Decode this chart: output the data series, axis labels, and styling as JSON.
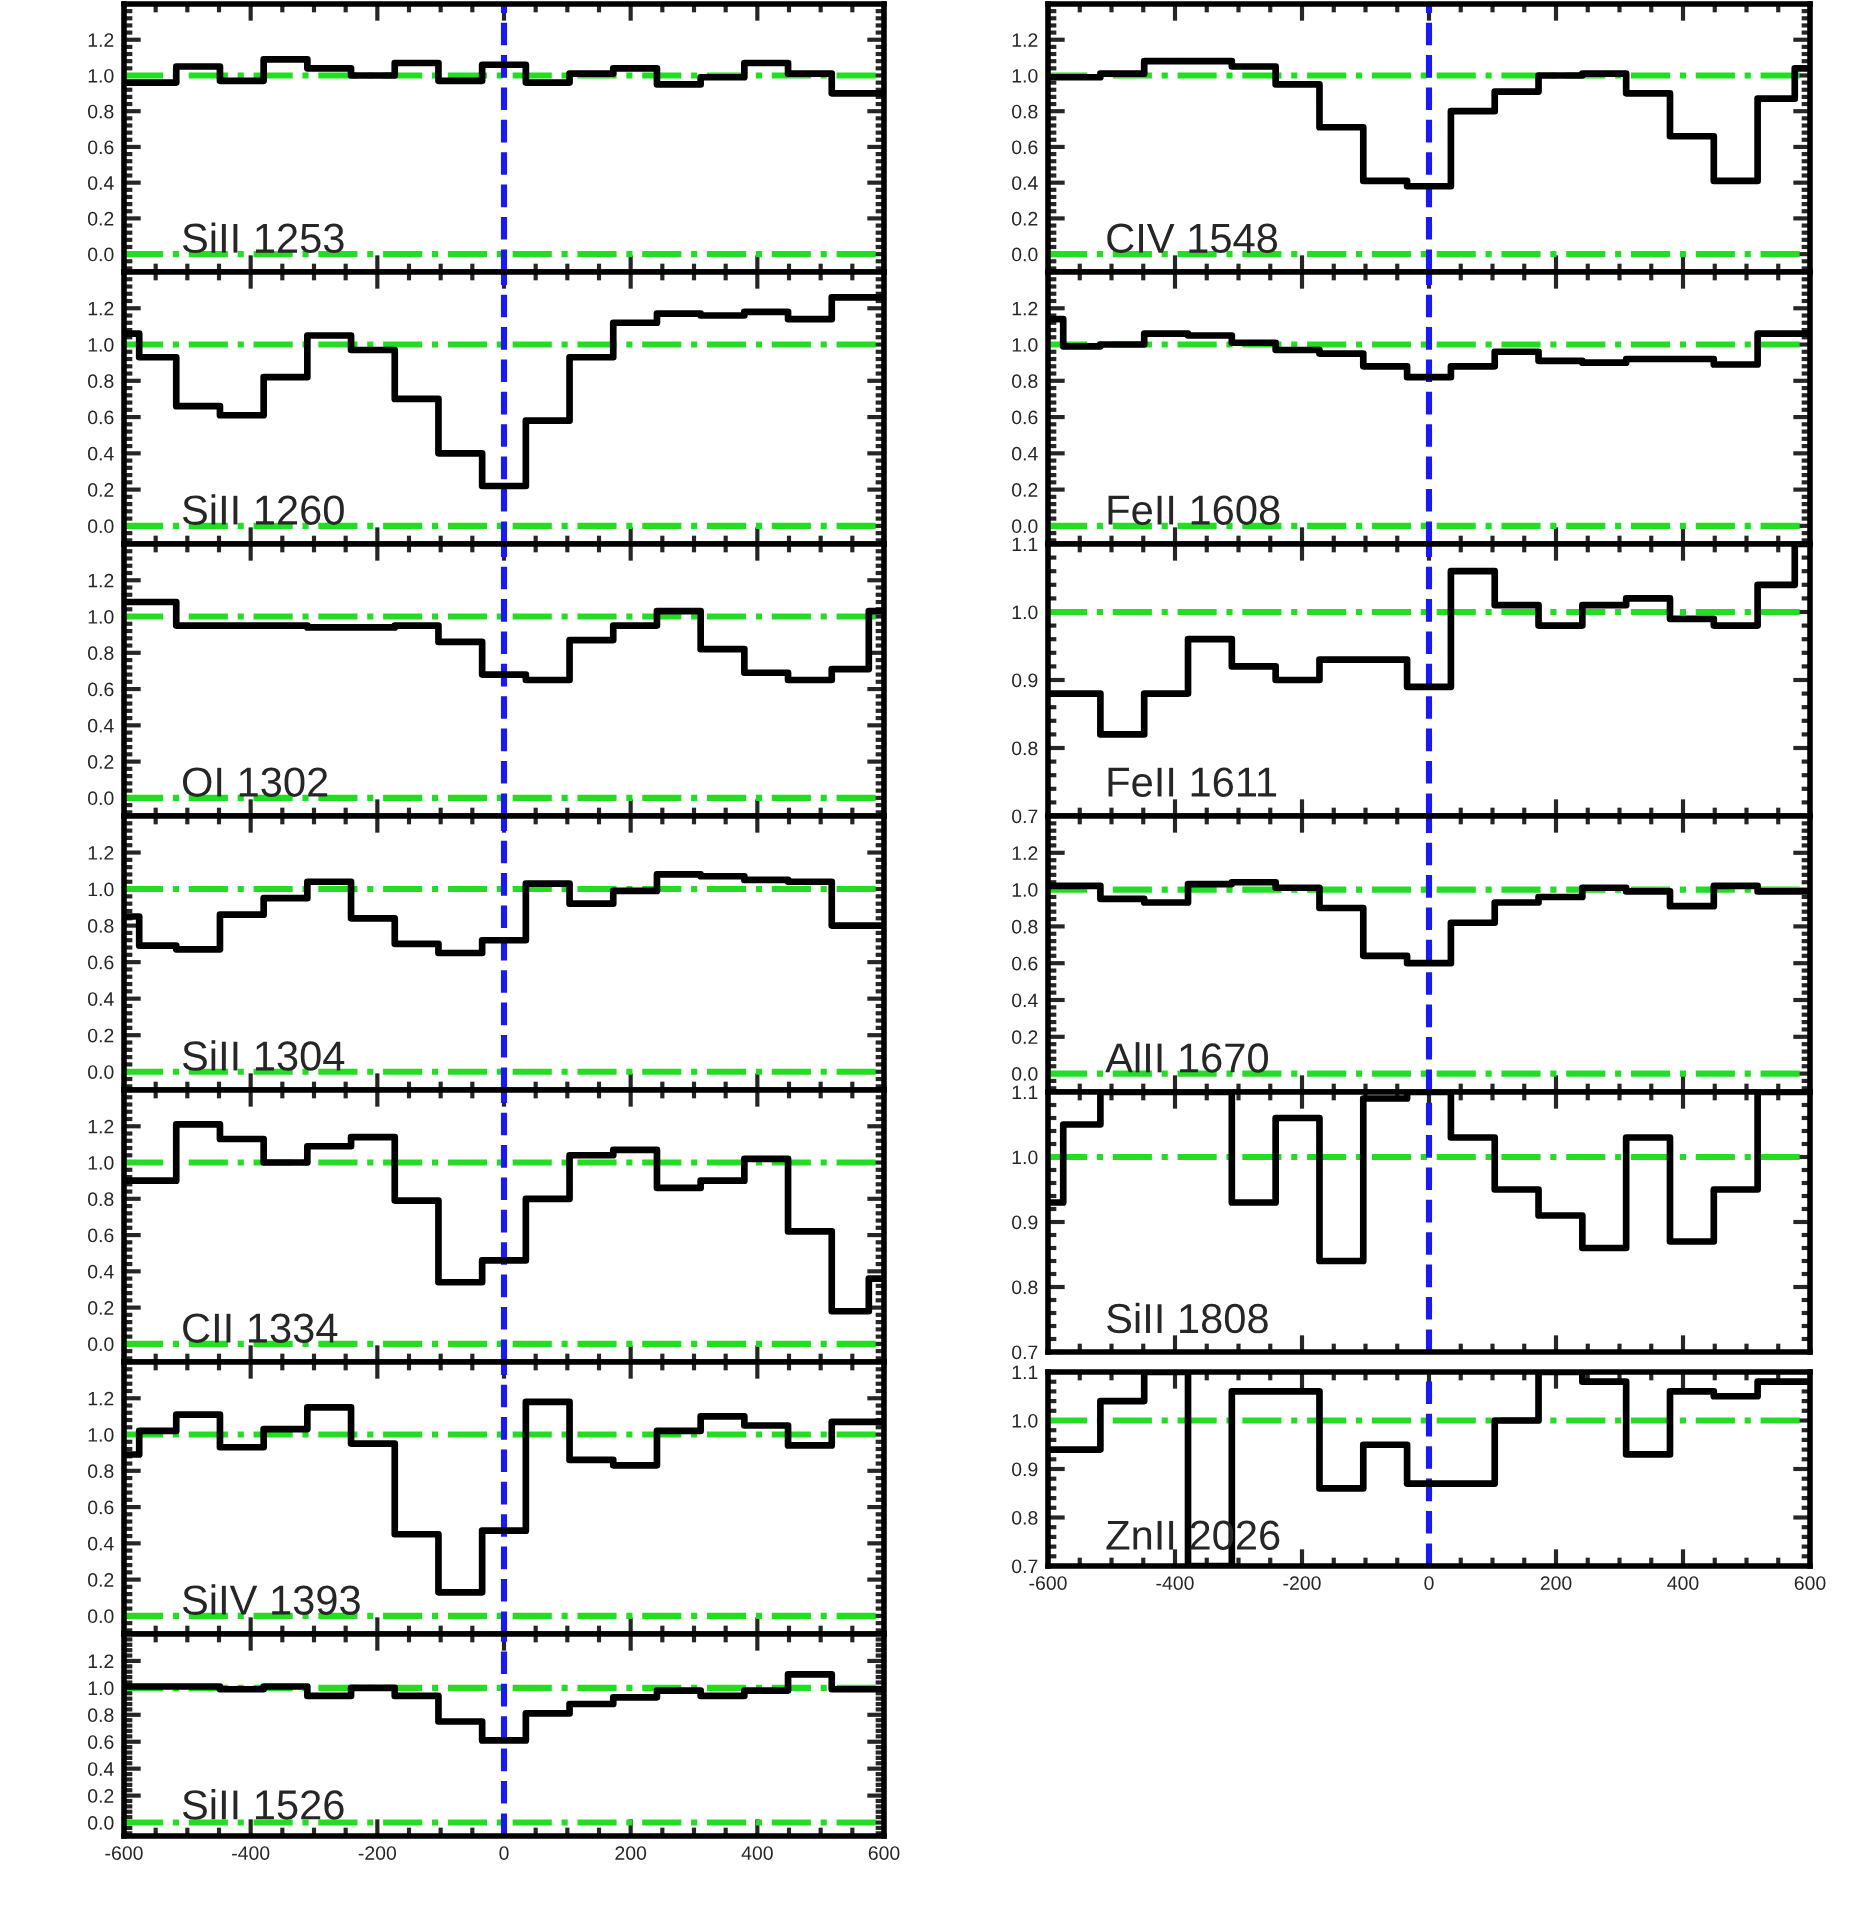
{
  "chart_data": [
    {
      "type": "step",
      "x": [
        -600,
        -552,
        -483,
        -414,
        -345,
        -276,
        -207,
        -138,
        -69,
        0,
        69,
        138,
        207,
        276,
        345,
        414,
        483,
        552,
        600
      ],
      "series": [
        {
          "color": "#000000",
          "values": [
            0.96,
            0.96,
            1.05,
            0.97,
            1.09,
            1.04,
            1.0,
            1.07,
            0.97,
            1.06,
            0.96,
            1.01,
            1.04,
            0.95,
            0.99,
            1.07,
            1.01,
            0.9,
            0.9
          ]
        }
      ],
      "xlim": [
        -600,
        600
      ],
      "ylim": [
        -0.1,
        1.4
      ],
      "xticks": [
        -600,
        -400,
        -200,
        0,
        200,
        400,
        600
      ],
      "yticks": [
        {
          "value": 0,
          "label": "0.0"
        },
        {
          "value": 0.2,
          "label": "0.2"
        },
        {
          "value": 0.4,
          "label": "0.4"
        },
        {
          "value": 0.6,
          "label": "0.6"
        },
        {
          "value": 0.8,
          "label": "0.8"
        },
        {
          "value": 1.0,
          "label": "1.0"
        },
        {
          "value": 1.2,
          "label": "1.2"
        }
      ],
      "tick_labels": "y",
      "annotations": [
        "SiII 1253"
      ],
      "ref_lines": [
        {
          "axis": "y",
          "value": 0,
          "color": "#22dd22",
          "line_style": "dashdot"
        },
        {
          "axis": "y",
          "value": 1,
          "color": "#22dd22",
          "line_style": "dashdot"
        },
        {
          "axis": "x",
          "value": 0,
          "color": "#1a1aee",
          "line_style": "dashed"
        }
      ]
    },
    {
      "type": "step",
      "x": [
        -600,
        -552,
        -483,
        -414,
        -345,
        -276,
        -207,
        -138,
        -69,
        0,
        69,
        138,
        207,
        276,
        345,
        414,
        483,
        552,
        600
      ],
      "series": [
        {
          "color": "#000000",
          "values": [
            1.06,
            0.93,
            0.66,
            0.61,
            0.82,
            1.05,
            0.97,
            0.7,
            0.4,
            0.22,
            0.58,
            0.93,
            1.12,
            1.17,
            1.16,
            1.18,
            1.14,
            1.26,
            1.26
          ]
        }
      ],
      "xlim": [
        -600,
        600
      ],
      "ylim": [
        -0.1,
        1.4
      ],
      "xticks": [
        -600,
        -400,
        -200,
        0,
        200,
        400,
        600
      ],
      "yticks": [
        {
          "value": 0,
          "label": "0.0"
        },
        {
          "value": 0.2,
          "label": "0.2"
        },
        {
          "value": 0.4,
          "label": "0.4"
        },
        {
          "value": 0.6,
          "label": "0.6"
        },
        {
          "value": 0.8,
          "label": "0.8"
        },
        {
          "value": 1.0,
          "label": "1.0"
        },
        {
          "value": 1.2,
          "label": "1.2"
        }
      ],
      "tick_labels": "y",
      "annotations": [
        "SiII 1260"
      ],
      "ref_lines": [
        {
          "axis": "y",
          "value": 0,
          "color": "#22dd22",
          "line_style": "dashdot"
        },
        {
          "axis": "y",
          "value": 1,
          "color": "#22dd22",
          "line_style": "dashdot"
        },
        {
          "axis": "x",
          "value": 0,
          "color": "#1a1aee",
          "line_style": "dashed"
        }
      ]
    },
    {
      "type": "step",
      "x": [
        -600,
        -552,
        -483,
        -414,
        -345,
        -276,
        -207,
        -138,
        -69,
        0,
        69,
        138,
        207,
        276,
        345,
        414,
        483,
        552,
        600
      ],
      "series": [
        {
          "color": "#000000",
          "values": [
            1.08,
            1.08,
            0.95,
            0.95,
            0.95,
            0.94,
            0.94,
            0.95,
            0.86,
            0.68,
            0.65,
            0.87,
            0.95,
            1.03,
            0.82,
            0.69,
            0.65,
            0.71,
            1.03
          ]
        }
      ],
      "xlim": [
        -600,
        600
      ],
      "ylim": [
        -0.1,
        1.4
      ],
      "xticks": [
        -600,
        -400,
        -200,
        0,
        200,
        400,
        600
      ],
      "yticks": [
        {
          "value": 0,
          "label": "0.0"
        },
        {
          "value": 0.2,
          "label": "0.2"
        },
        {
          "value": 0.4,
          "label": "0.4"
        },
        {
          "value": 0.6,
          "label": "0.6"
        },
        {
          "value": 0.8,
          "label": "0.8"
        },
        {
          "value": 1.0,
          "label": "1.0"
        },
        {
          "value": 1.2,
          "label": "1.2"
        }
      ],
      "tick_labels": "y",
      "annotations": [
        "OI 1302"
      ],
      "ref_lines": [
        {
          "axis": "y",
          "value": 0,
          "color": "#22dd22",
          "line_style": "dashdot"
        },
        {
          "axis": "y",
          "value": 1,
          "color": "#22dd22",
          "line_style": "dashdot"
        },
        {
          "axis": "x",
          "value": 0,
          "color": "#1a1aee",
          "line_style": "dashed"
        }
      ]
    },
    {
      "type": "step",
      "x": [
        -600,
        -552,
        -483,
        -414,
        -345,
        -276,
        -207,
        -138,
        -69,
        0,
        69,
        138,
        207,
        276,
        345,
        414,
        483,
        552,
        600
      ],
      "series": [
        {
          "color": "#000000",
          "values": [
            0.85,
            0.69,
            0.67,
            0.86,
            0.95,
            1.04,
            0.84,
            0.7,
            0.65,
            0.72,
            1.03,
            0.92,
            0.99,
            1.08,
            1.07,
            1.05,
            1.04,
            0.8,
            0.8
          ]
        }
      ],
      "xlim": [
        -600,
        600
      ],
      "ylim": [
        -0.1,
        1.4
      ],
      "xticks": [
        -600,
        -400,
        -200,
        0,
        200,
        400,
        600
      ],
      "yticks": [
        {
          "value": 0,
          "label": "0.0"
        },
        {
          "value": 0.2,
          "label": "0.2"
        },
        {
          "value": 0.4,
          "label": "0.4"
        },
        {
          "value": 0.6,
          "label": "0.6"
        },
        {
          "value": 0.8,
          "label": "0.8"
        },
        {
          "value": 1.0,
          "label": "1.0"
        },
        {
          "value": 1.2,
          "label": "1.2"
        }
      ],
      "tick_labels": "y",
      "annotations": [
        "SiII 1304"
      ],
      "ref_lines": [
        {
          "axis": "y",
          "value": 0,
          "color": "#22dd22",
          "line_style": "dashdot"
        },
        {
          "axis": "y",
          "value": 1,
          "color": "#22dd22",
          "line_style": "dashdot"
        },
        {
          "axis": "x",
          "value": 0,
          "color": "#1a1aee",
          "line_style": "dashed"
        }
      ]
    },
    {
      "type": "step",
      "x": [
        -600,
        -552,
        -483,
        -414,
        -345,
        -276,
        -207,
        -138,
        -69,
        0,
        69,
        138,
        207,
        276,
        345,
        414,
        483,
        552,
        600
      ],
      "series": [
        {
          "color": "#000000",
          "values": [
            0.9,
            0.9,
            1.21,
            1.13,
            1.0,
            1.09,
            1.14,
            0.79,
            0.34,
            0.46,
            0.8,
            1.04,
            1.07,
            0.86,
            0.9,
            1.02,
            0.62,
            0.18,
            0.36
          ]
        }
      ],
      "xlim": [
        -600,
        600
      ],
      "ylim": [
        -0.1,
        1.4
      ],
      "xticks": [
        -600,
        -400,
        -200,
        0,
        200,
        400,
        600
      ],
      "yticks": [
        {
          "value": 0,
          "label": "0.0"
        },
        {
          "value": 0.2,
          "label": "0.2"
        },
        {
          "value": 0.4,
          "label": "0.4"
        },
        {
          "value": 0.6,
          "label": "0.6"
        },
        {
          "value": 0.8,
          "label": "0.8"
        },
        {
          "value": 1.0,
          "label": "1.0"
        },
        {
          "value": 1.2,
          "label": "1.2"
        }
      ],
      "tick_labels": "y",
      "annotations": [
        "CII 1334"
      ],
      "ref_lines": [
        {
          "axis": "y",
          "value": 0,
          "color": "#22dd22",
          "line_style": "dashdot"
        },
        {
          "axis": "y",
          "value": 1,
          "color": "#22dd22",
          "line_style": "dashdot"
        },
        {
          "axis": "x",
          "value": 0,
          "color": "#1a1aee",
          "line_style": "dashed"
        }
      ]
    },
    {
      "type": "step",
      "x": [
        -600,
        -552,
        -483,
        -414,
        -345,
        -276,
        -207,
        -138,
        -69,
        0,
        69,
        138,
        207,
        276,
        345,
        414,
        483,
        552,
        600
      ],
      "series": [
        {
          "color": "#000000",
          "values": [
            0.89,
            1.02,
            1.11,
            0.93,
            1.03,
            1.15,
            0.95,
            0.45,
            0.13,
            0.47,
            1.18,
            0.86,
            0.83,
            1.02,
            1.1,
            1.05,
            0.94,
            1.07,
            1.07
          ]
        }
      ],
      "xlim": [
        -600,
        600
      ],
      "ylim": [
        -0.1,
        1.4
      ],
      "xticks": [
        -600,
        -400,
        -200,
        0,
        200,
        400,
        600
      ],
      "yticks": [
        {
          "value": 0,
          "label": "0.0"
        },
        {
          "value": 0.2,
          "label": "0.2"
        },
        {
          "value": 0.4,
          "label": "0.4"
        },
        {
          "value": 0.6,
          "label": "0.6"
        },
        {
          "value": 0.8,
          "label": "0.8"
        },
        {
          "value": 1.0,
          "label": "1.0"
        },
        {
          "value": 1.2,
          "label": "1.2"
        }
      ],
      "tick_labels": "y",
      "annotations": [
        "SiIV 1393"
      ],
      "ref_lines": [
        {
          "axis": "y",
          "value": 0,
          "color": "#22dd22",
          "line_style": "dashdot"
        },
        {
          "axis": "y",
          "value": 1,
          "color": "#22dd22",
          "line_style": "dashdot"
        },
        {
          "axis": "x",
          "value": 0,
          "color": "#1a1aee",
          "line_style": "dashed"
        }
      ]
    },
    {
      "type": "step",
      "x": [
        -600,
        -552,
        -483,
        -414,
        -345,
        -276,
        -207,
        -138,
        -69,
        0,
        69,
        138,
        207,
        276,
        345,
        414,
        483,
        552,
        600
      ],
      "series": [
        {
          "color": "#000000",
          "values": [
            1.01,
            1.01,
            1.01,
            0.99,
            1.01,
            0.94,
            1.0,
            0.94,
            0.75,
            0.61,
            0.81,
            0.88,
            0.93,
            0.98,
            0.94,
            0.98,
            1.1,
            0.99,
            0.99
          ]
        }
      ],
      "xlim": [
        -600,
        600
      ],
      "ylim": [
        -0.1,
        1.4
      ],
      "xticks": [
        -600,
        -400,
        -200,
        0,
        200,
        400,
        600
      ],
      "yticks": [
        {
          "value": 0,
          "label": "0.0"
        },
        {
          "value": 0.2,
          "label": "0.2"
        },
        {
          "value": 0.4,
          "label": "0.4"
        },
        {
          "value": 0.6,
          "label": "0.6"
        },
        {
          "value": 0.8,
          "label": "0.8"
        },
        {
          "value": 1.0,
          "label": "1.0"
        },
        {
          "value": 1.2,
          "label": "1.2"
        }
      ],
      "annotations": [
        "SiII 1526"
      ],
      "ref_lines": [
        {
          "axis": "y",
          "value": 0,
          "color": "#22dd22",
          "line_style": "dashdot"
        },
        {
          "axis": "y",
          "value": 1,
          "color": "#22dd22",
          "line_style": "dashdot"
        },
        {
          "axis": "x",
          "value": 0,
          "color": "#1a1aee",
          "line_style": "dashed"
        }
      ]
    },
    {
      "type": "step",
      "x": [
        -600,
        -552,
        -483,
        -414,
        -345,
        -276,
        -207,
        -138,
        -69,
        0,
        69,
        138,
        207,
        276,
        345,
        414,
        483,
        552,
        600
      ],
      "series": [
        {
          "color": "#000000",
          "values": [
            0.99,
            0.99,
            1.01,
            1.08,
            1.08,
            1.05,
            0.95,
            0.71,
            0.41,
            0.38,
            0.8,
            0.91,
            1.0,
            1.01,
            0.9,
            0.66,
            0.41,
            0.87,
            1.04
          ]
        }
      ],
      "xlim": [
        -600,
        600
      ],
      "ylim": [
        -0.1,
        1.4
      ],
      "xticks": [
        -600,
        -400,
        -200,
        0,
        200,
        400,
        600
      ],
      "yticks": [
        {
          "value": 0,
          "label": "0.0"
        },
        {
          "value": 0.2,
          "label": "0.2"
        },
        {
          "value": 0.4,
          "label": "0.4"
        },
        {
          "value": 0.6,
          "label": "0.6"
        },
        {
          "value": 0.8,
          "label": "0.8"
        },
        {
          "value": 1.0,
          "label": "1.0"
        },
        {
          "value": 1.2,
          "label": "1.2"
        }
      ],
      "tick_labels": "y",
      "annotations": [
        "CIV 1548"
      ],
      "ref_lines": [
        {
          "axis": "y",
          "value": 0,
          "color": "#22dd22",
          "line_style": "dashdot"
        },
        {
          "axis": "y",
          "value": 1,
          "color": "#22dd22",
          "line_style": "dashdot"
        },
        {
          "axis": "x",
          "value": 0,
          "color": "#1a1aee",
          "line_style": "dashed"
        }
      ]
    },
    {
      "type": "step",
      "x": [
        -600,
        -552,
        -483,
        -414,
        -345,
        -276,
        -207,
        -138,
        -69,
        0,
        69,
        138,
        207,
        276,
        345,
        414,
        483,
        552,
        600
      ],
      "series": [
        {
          "color": "#000000",
          "values": [
            1.14,
            0.99,
            1.0,
            1.06,
            1.05,
            1.01,
            0.97,
            0.95,
            0.88,
            0.82,
            0.88,
            0.96,
            0.91,
            0.9,
            0.92,
            0.92,
            0.89,
            1.06,
            1.06
          ]
        }
      ],
      "xlim": [
        -600,
        600
      ],
      "ylim": [
        -0.1,
        1.4
      ],
      "xticks": [
        -600,
        -400,
        -200,
        0,
        200,
        400,
        600
      ],
      "yticks": [
        {
          "value": 0,
          "label": "0.0"
        },
        {
          "value": 0.2,
          "label": "0.2"
        },
        {
          "value": 0.4,
          "label": "0.4"
        },
        {
          "value": 0.6,
          "label": "0.6"
        },
        {
          "value": 0.8,
          "label": "0.8"
        },
        {
          "value": 1.0,
          "label": "1.0"
        },
        {
          "value": 1.2,
          "label": "1.2"
        }
      ],
      "tick_labels": "y",
      "annotations": [
        "FeII 1608"
      ],
      "ref_lines": [
        {
          "axis": "y",
          "value": 0,
          "color": "#22dd22",
          "line_style": "dashdot"
        },
        {
          "axis": "y",
          "value": 1,
          "color": "#22dd22",
          "line_style": "dashdot"
        },
        {
          "axis": "x",
          "value": 0,
          "color": "#1a1aee",
          "line_style": "dashed"
        }
      ]
    },
    {
      "type": "step",
      "x": [
        -600,
        -552,
        -483,
        -414,
        -345,
        -276,
        -207,
        -138,
        -69,
        0,
        69,
        138,
        207,
        276,
        345,
        414,
        483,
        552,
        600
      ],
      "series": [
        {
          "color": "#000000",
          "values": [
            0.88,
            0.88,
            0.82,
            0.88,
            0.96,
            0.92,
            0.9,
            0.93,
            0.93,
            0.89,
            1.06,
            1.01,
            0.98,
            1.01,
            1.02,
            0.99,
            0.98,
            1.04,
            1.1
          ]
        }
      ],
      "xlim": [
        -600,
        600
      ],
      "ylim": [
        0.7,
        1.1
      ],
      "xticks": [
        -600,
        -400,
        -200,
        0,
        200,
        400,
        600
      ],
      "yticks": [
        0.7,
        0.8,
        0.9,
        {
          "value": 1.0,
          "label": "1.0"
        },
        1.1
      ],
      "tick_labels": "y",
      "annotations": [
        "FeII 1611"
      ],
      "ref_lines": [
        {
          "axis": "y",
          "value": 1,
          "color": "#22dd22",
          "line_style": "dashdot"
        },
        {
          "axis": "x",
          "value": 0,
          "color": "#1a1aee",
          "line_style": "dashed"
        }
      ]
    },
    {
      "type": "step",
      "x": [
        -600,
        -552,
        -483,
        -414,
        -345,
        -276,
        -207,
        -138,
        -69,
        0,
        69,
        138,
        207,
        276,
        345,
        414,
        483,
        552,
        600
      ],
      "series": [
        {
          "color": "#000000",
          "values": [
            1.02,
            1.02,
            0.95,
            0.93,
            1.03,
            1.04,
            1.01,
            0.9,
            0.64,
            0.6,
            0.82,
            0.93,
            0.96,
            1.01,
            0.99,
            0.91,
            1.02,
            0.99,
            0.99
          ]
        }
      ],
      "xlim": [
        -600,
        600
      ],
      "ylim": [
        -0.1,
        1.4
      ],
      "xticks": [
        -600,
        -400,
        -200,
        0,
        200,
        400,
        600
      ],
      "yticks": [
        {
          "value": 0,
          "label": "0.0"
        },
        {
          "value": 0.2,
          "label": "0.2"
        },
        {
          "value": 0.4,
          "label": "0.4"
        },
        {
          "value": 0.6,
          "label": "0.6"
        },
        {
          "value": 0.8,
          "label": "0.8"
        },
        {
          "value": 1.0,
          "label": "1.0"
        },
        {
          "value": 1.2,
          "label": "1.2"
        }
      ],
      "tick_labels": "y",
      "annotations": [
        "AlII 1670"
      ],
      "ref_lines": [
        {
          "axis": "y",
          "value": 0,
          "color": "#22dd22",
          "line_style": "dashdot"
        },
        {
          "axis": "y",
          "value": 1,
          "color": "#22dd22",
          "line_style": "dashdot"
        },
        {
          "axis": "x",
          "value": 0,
          "color": "#1a1aee",
          "line_style": "dashed"
        }
      ]
    },
    {
      "type": "step",
      "x": [
        -600,
        -552,
        -483,
        -414,
        -345,
        -276,
        -207,
        -138,
        -69,
        0,
        69,
        138,
        207,
        276,
        345,
        414,
        483,
        552,
        600
      ],
      "series": [
        {
          "color": "#000000",
          "values": [
            0.93,
            1.05,
            1.1,
            1.1,
            1.1,
            0.93,
            1.06,
            0.84,
            1.09,
            1.1,
            1.03,
            0.95,
            0.91,
            0.86,
            1.03,
            0.87,
            0.95,
            1.1,
            1.1
          ]
        }
      ],
      "xlim": [
        -600,
        600
      ],
      "ylim": [
        0.7,
        1.1
      ],
      "xticks": [
        -600,
        -400,
        -200,
        0,
        200,
        400,
        600
      ],
      "yticks": [
        0.7,
        0.8,
        0.9,
        {
          "value": 1.0,
          "label": "1.0"
        },
        1.1
      ],
      "tick_labels": "y",
      "annotations": [
        "SiII 1808"
      ],
      "ref_lines": [
        {
          "axis": "y",
          "value": 1,
          "color": "#22dd22",
          "line_style": "dashdot"
        },
        {
          "axis": "x",
          "value": 0,
          "color": "#1a1aee",
          "line_style": "dashed"
        }
      ]
    },
    {
      "type": "step",
      "x": [
        -600,
        -552,
        -483,
        -414,
        -345,
        -276,
        -207,
        -138,
        -69,
        0,
        69,
        138,
        207,
        276,
        345,
        414,
        483,
        552,
        600
      ],
      "series": [
        {
          "color": "#000000",
          "values": [
            0.94,
            0.94,
            1.04,
            1.1,
            0.7,
            1.06,
            1.06,
            0.86,
            0.95,
            0.87,
            0.87,
            1.0,
            1.1,
            1.08,
            0.93,
            1.06,
            1.05,
            1.08,
            1.08
          ]
        }
      ],
      "xlim": [
        -600,
        600
      ],
      "ylim": [
        0.7,
        1.1
      ],
      "xticks": [
        -600,
        -400,
        -200,
        0,
        200,
        400,
        600
      ],
      "yticks": [
        0.7,
        0.8,
        0.9,
        {
          "value": 1.0,
          "label": "1.0"
        },
        1.1
      ],
      "annotations": [
        "ZnII 2026"
      ],
      "ref_lines": [
        {
          "axis": "y",
          "value": 1,
          "color": "#22dd22",
          "line_style": "dashdot"
        },
        {
          "axis": "x",
          "value": 0,
          "color": "#1a1aee",
          "line_style": "dashed"
        }
      ]
    }
  ]
}
